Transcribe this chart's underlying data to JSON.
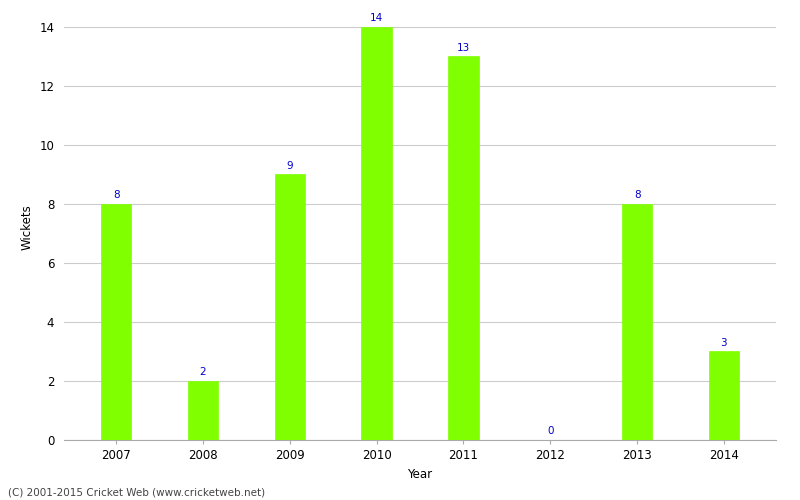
{
  "years": [
    "2007",
    "2008",
    "2009",
    "2010",
    "2011",
    "2012",
    "2013",
    "2014"
  ],
  "wickets": [
    8,
    2,
    9,
    14,
    13,
    0,
    8,
    3
  ],
  "bar_color": "#7fff00",
  "bar_edge_color": "#7fff00",
  "xlabel": "Year",
  "ylabel": "Wickets",
  "ylim": [
    0,
    14.4
  ],
  "yticks": [
    0,
    2,
    4,
    6,
    8,
    10,
    12,
    14
  ],
  "label_color": "#0000cc",
  "label_fontsize": 7.5,
  "axis_fontsize": 8.5,
  "tick_fontsize": 8.5,
  "grid_color": "#cccccc",
  "background_color": "#ffffff",
  "footer_text": "(C) 2001-2015 Cricket Web (www.cricketweb.net)",
  "footer_fontsize": 7.5,
  "bar_width": 0.35
}
